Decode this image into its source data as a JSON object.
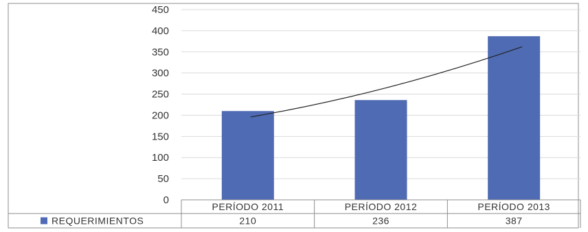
{
  "chart_data": {
    "type": "bar",
    "categories": [
      "PERÍODO 2011",
      "PERÍODO 2012",
      "PERÍODO 2013"
    ],
    "series": [
      {
        "name": "REQUERIMIENTOS",
        "values": [
          210,
          236,
          387
        ]
      }
    ],
    "values_text": [
      "210",
      "236",
      "387"
    ],
    "ylim": [
      0,
      450
    ],
    "yticks": [
      0,
      50,
      100,
      150,
      200,
      250,
      300,
      350,
      400,
      450
    ],
    "grid": true,
    "trendline": {
      "type": "polynomial",
      "from_value": 196,
      "to_value": 362
    },
    "data_table": true,
    "colors": {
      "bar": "#4f6bb4",
      "grid": "#d9d9d9",
      "border": "#8c8c8c",
      "trend": "#222222"
    }
  }
}
